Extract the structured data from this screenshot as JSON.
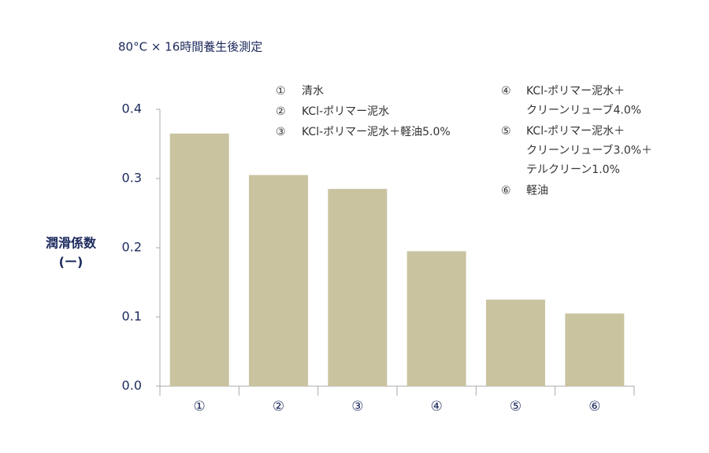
{
  "chart_data": {
    "type": "bar",
    "subtitle": "80°C × 16時間養生後測定",
    "y_label": [
      "潤滑係数",
      "(ー)"
    ],
    "categories": [
      "①",
      "②",
      "③",
      "④",
      "⑤",
      "⑥"
    ],
    "values": [
      0.365,
      0.305,
      0.285,
      0.195,
      0.125,
      0.105
    ],
    "color": "#c9c3a0",
    "ylim": [
      0,
      0.4
    ],
    "yticks": [
      {
        "value": 0,
        "label": "0.0"
      },
      0.1,
      0.2,
      0.3,
      0.4
    ],
    "grid": false,
    "legend": [
      {
        "key": "①",
        "text": [
          "清水"
        ]
      },
      {
        "key": "②",
        "text": [
          "KCl-ポリマー泥水"
        ]
      },
      {
        "key": "③",
        "text": [
          "KCl-ポリマー泥水＋軽油5.0%"
        ]
      },
      {
        "key": "④",
        "text": [
          "KCl-ポリマー泥水＋",
          "クリーンリューブ4.0%"
        ]
      },
      {
        "key": "⑤",
        "text": [
          "KCl-ポリマー泥水＋",
          "クリーンリューブ3.0%＋",
          "テルクリーン1.0%"
        ]
      },
      {
        "key": "⑥",
        "text": [
          "軽油"
        ]
      }
    ]
  }
}
